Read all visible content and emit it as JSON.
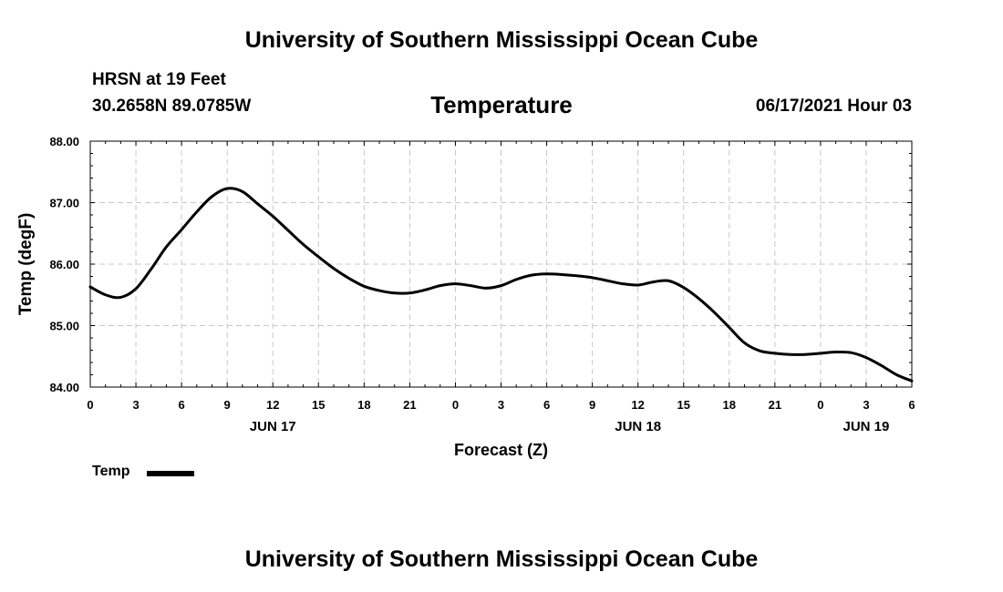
{
  "header": {
    "title": "University of Southern Mississippi Ocean Cube",
    "station": "HRSN at 19 Feet",
    "coords": "30.2658N  89.0785W",
    "chart_title": "Temperature",
    "timestamp": "06/17/2021 Hour 03"
  },
  "footer": {
    "title": "University of Southern Mississippi Ocean Cube"
  },
  "colors": {
    "line": "#000000",
    "grid": "#c8c8c8"
  },
  "chart_data": {
    "type": "line",
    "title": "Temperature",
    "xlabel": "Forecast (Z)",
    "ylabel": "Temp (degF)",
    "ylim": [
      84.0,
      88.0
    ],
    "xlim": [
      0,
      54
    ],
    "y_ticks": [
      "84.00",
      "85.00",
      "86.00",
      "87.00",
      "88.00"
    ],
    "x_ticks": [
      "0",
      "3",
      "6",
      "9",
      "12",
      "15",
      "18",
      "21",
      "0",
      "3",
      "6",
      "9",
      "12",
      "15",
      "18",
      "21",
      "0",
      "3",
      "6"
    ],
    "day_labels": [
      {
        "label": "JUN 17",
        "hour": 12
      },
      {
        "label": "JUN 18",
        "hour": 36
      },
      {
        "label": "JUN 19",
        "hour": 51
      }
    ],
    "grid": true,
    "legend": {
      "label": "Temp",
      "position": "bottom-left"
    },
    "series": [
      {
        "name": "Temp",
        "x": [
          0,
          1,
          2,
          3,
          4,
          5,
          6,
          7,
          8,
          9,
          10,
          11,
          12,
          13,
          14,
          15,
          16,
          17,
          18,
          19,
          20,
          21,
          22,
          23,
          24,
          25,
          26,
          27,
          28,
          29,
          30,
          31,
          32,
          33,
          34,
          35,
          36,
          37,
          38,
          39,
          40,
          41,
          42,
          43,
          44,
          45,
          46,
          47,
          48,
          49,
          50,
          51,
          52,
          53,
          54
        ],
        "y": [
          85.63,
          85.5,
          85.46,
          85.6,
          85.92,
          86.28,
          86.56,
          86.85,
          87.1,
          87.23,
          87.18,
          86.98,
          86.78,
          86.55,
          86.32,
          86.12,
          85.93,
          85.77,
          85.64,
          85.57,
          85.53,
          85.53,
          85.58,
          85.65,
          85.68,
          85.65,
          85.61,
          85.65,
          85.75,
          85.82,
          85.84,
          85.83,
          85.81,
          85.78,
          85.73,
          85.68,
          85.66,
          85.71,
          85.73,
          85.62,
          85.44,
          85.22,
          84.97,
          84.72,
          84.59,
          84.55,
          84.53,
          84.53,
          84.55,
          84.57,
          84.56,
          84.48,
          84.35,
          84.2,
          84.1
        ]
      }
    ]
  }
}
